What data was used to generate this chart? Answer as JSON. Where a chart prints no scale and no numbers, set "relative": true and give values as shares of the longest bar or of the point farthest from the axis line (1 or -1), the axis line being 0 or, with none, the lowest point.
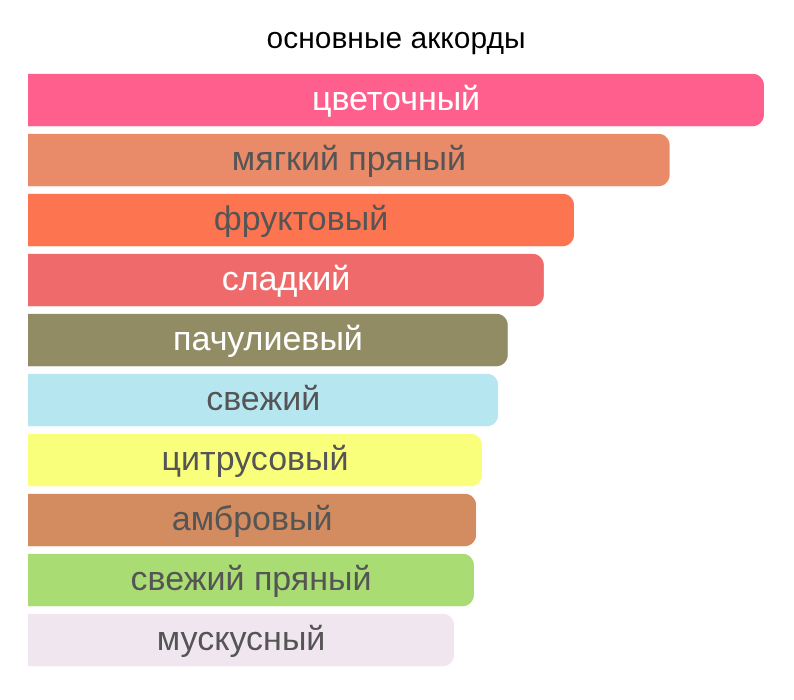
{
  "chart_data": {
    "type": "bar",
    "orientation": "horizontal",
    "relative": true,
    "title": "основные аккорды",
    "categories": [
      "цветочный",
      "мягкий пряный",
      "фруктовый",
      "сладкий",
      "пачулиевый",
      "свежий",
      "цитрусовый",
      "амбровый",
      "свежий пряный",
      "мускусный"
    ],
    "values": [
      1,
      0.872,
      0.742,
      0.701,
      0.652,
      0.639,
      0.617,
      0.609,
      0.606,
      0.579
    ],
    "colors": [
      "#ff5f8d",
      "#e98a68",
      "#fc7550",
      "#ef6b6b",
      "#928c65",
      "#b6e6f0",
      "#f9ff7b",
      "#d38c60",
      "#a9dc73",
      "#f0e6f0"
    ]
  }
}
